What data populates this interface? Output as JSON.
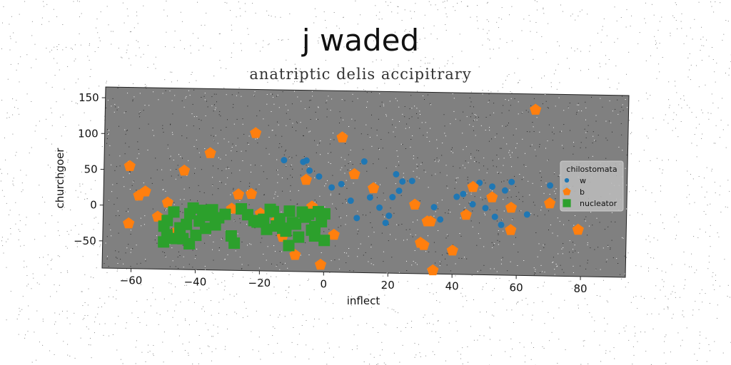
{
  "chart_data": {
    "type": "scatter",
    "title": "j waded",
    "subtitle": "anatriptic delis accipitrary",
    "xlabel": "inflect",
    "ylabel": "churchgoer",
    "xlim": [
      -69,
      94
    ],
    "ylim": [
      -88,
      165
    ],
    "xticks": [
      -60,
      -40,
      -20,
      0,
      20,
      40,
      60,
      80
    ],
    "yticks": [
      -50,
      0,
      50,
      100,
      150
    ],
    "grid": false,
    "legend": {
      "title": "chilostomata",
      "position": "right"
    },
    "series": [
      {
        "name": "w",
        "color": "#1f77b4",
        "marker": "circle",
        "points": [
          [
            -13,
            67
          ],
          [
            -6,
            67
          ],
          [
            -7,
            65
          ],
          [
            -5,
            53
          ],
          [
            -2,
            45
          ],
          [
            2,
            30
          ],
          [
            5,
            35
          ],
          [
            8,
            12
          ],
          [
            10,
            -12
          ],
          [
            12,
            67
          ],
          [
            14,
            17
          ],
          [
            17,
            3
          ],
          [
            19,
            -18
          ],
          [
            20,
            -8
          ],
          [
            21,
            18
          ],
          [
            23,
            27
          ],
          [
            22,
            50
          ],
          [
            24,
            40
          ],
          [
            27,
            41
          ],
          [
            34,
            5
          ],
          [
            36,
            -12
          ],
          [
            41,
            20
          ],
          [
            43,
            24
          ],
          [
            46,
            10
          ],
          [
            48,
            40
          ],
          [
            50,
            5
          ],
          [
            52,
            35
          ],
          [
            53,
            -7
          ],
          [
            55,
            -18
          ],
          [
            56,
            30
          ],
          [
            58,
            42
          ],
          [
            63,
            -3
          ],
          [
            70,
            38
          ],
          [
            75,
            35
          ]
        ]
      },
      {
        "name": "b",
        "color": "#ff7f0e",
        "marker": "pentagon",
        "points": [
          [
            -61,
            55
          ],
          [
            -61,
            -25
          ],
          [
            -56,
            20
          ],
          [
            -58,
            14
          ],
          [
            -52,
            -15
          ],
          [
            -49,
            5
          ],
          [
            -46,
            -35
          ],
          [
            -44,
            50
          ],
          [
            -36,
            75
          ],
          [
            -29,
            -2
          ],
          [
            -27,
            18
          ],
          [
            -23,
            19
          ],
          [
            -22,
            104
          ],
          [
            -20,
            -8
          ],
          [
            -15,
            -18
          ],
          [
            -13,
            -40
          ],
          [
            -9,
            -65
          ],
          [
            -6,
            40
          ],
          [
            -4,
            3
          ],
          [
            -1,
            -78
          ],
          [
            3,
            -36
          ],
          [
            5,
            100
          ],
          [
            9,
            49
          ],
          [
            15,
            30
          ],
          [
            28,
            8
          ],
          [
            30,
            -45
          ],
          [
            31,
            -48
          ],
          [
            32,
            -15
          ],
          [
            33,
            -15
          ],
          [
            34,
            -83
          ],
          [
            40,
            -55
          ],
          [
            44,
            -5
          ],
          [
            46,
            34
          ],
          [
            52,
            20
          ],
          [
            58,
            -25
          ],
          [
            58,
            6
          ],
          [
            65,
            143
          ],
          [
            70,
            13
          ],
          [
            79,
            -23
          ]
        ]
      },
      {
        "name": "nucleator",
        "color": "#2ca02c",
        "marker": "square",
        "points": [
          [
            -50,
            -50
          ],
          [
            -49,
            -40
          ],
          [
            -50,
            -28
          ],
          [
            -49,
            -20
          ],
          [
            -47,
            -8
          ],
          [
            -44,
            -45
          ],
          [
            -43,
            -25
          ],
          [
            -42,
            -10
          ],
          [
            -42,
            -52
          ],
          [
            -40,
            -40
          ],
          [
            -41,
            -2
          ],
          [
            -39,
            -20
          ],
          [
            -38,
            -5
          ],
          [
            -37,
            -30
          ],
          [
            -36,
            -12
          ],
          [
            -35,
            -4
          ],
          [
            -34,
            -25
          ],
          [
            -33,
            -15
          ],
          [
            -31,
            -10
          ],
          [
            -29,
            -40
          ],
          [
            -28,
            -50
          ],
          [
            -26,
            -2
          ],
          [
            -24,
            -10
          ],
          [
            -21,
            -20
          ],
          [
            -19,
            -16
          ],
          [
            -18,
            -30
          ],
          [
            -16,
            -5
          ],
          [
            -15,
            -25
          ],
          [
            -14,
            -15
          ],
          [
            -13,
            -28
          ],
          [
            -12,
            -32
          ],
          [
            -11,
            -52
          ],
          [
            -10,
            -20
          ],
          [
            -9,
            -22
          ],
          [
            -8,
            -40
          ],
          [
            -7,
            -5
          ],
          [
            -6,
            -12
          ],
          [
            -5,
            -8
          ],
          [
            -4,
            -30
          ],
          [
            -3,
            -25
          ],
          [
            -2,
            -4
          ],
          [
            -1,
            -18
          ],
          [
            0,
            -44
          ],
          [
            0,
            -7
          ],
          [
            -3,
            -38
          ],
          [
            -11,
            -4
          ],
          [
            -17,
            -2
          ],
          [
            -22,
            -18
          ],
          [
            -45,
            -30
          ],
          [
            -47,
            -45
          ]
        ]
      }
    ]
  }
}
